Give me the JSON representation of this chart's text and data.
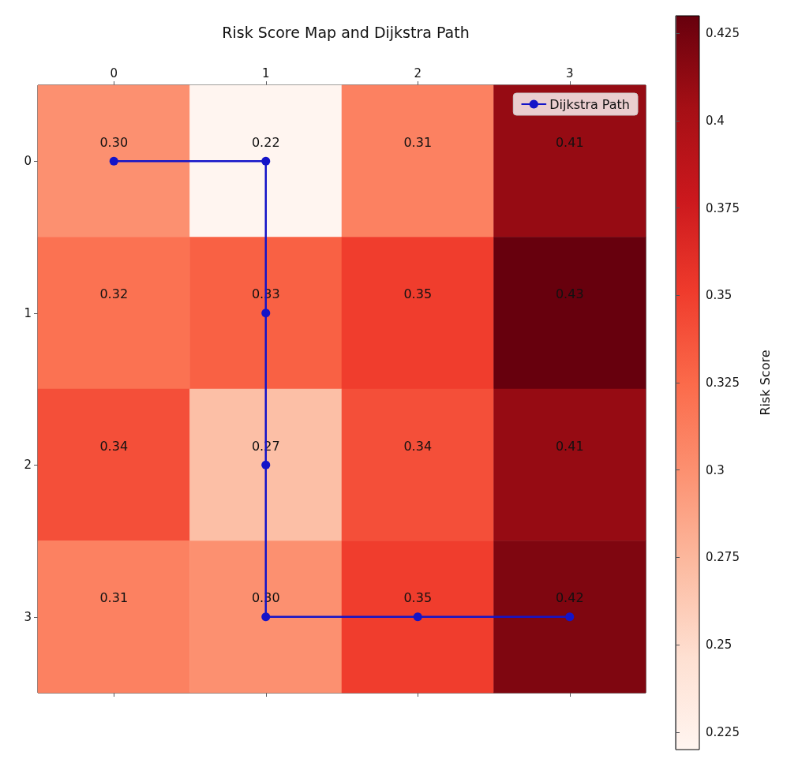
{
  "chart_data": {
    "type": "heatmap",
    "title": "Risk Score Map and Dijkstra Path",
    "clabel": "Risk Score",
    "categories": [
      "0",
      "1",
      "2",
      "3"
    ],
    "y_categories": [
      "0",
      "1",
      "2",
      "3"
    ],
    "cells": [
      [
        0.3,
        0.22,
        0.31,
        0.41
      ],
      [
        0.32,
        0.33,
        0.35,
        0.43
      ],
      [
        0.34,
        0.27,
        0.34,
        0.41
      ],
      [
        0.31,
        0.3,
        0.35,
        0.42
      ]
    ],
    "cell_labels": [
      [
        "0.30",
        "0.22",
        "0.31",
        "0.41"
      ],
      [
        "0.32",
        "0.33",
        "0.35",
        "0.43"
      ],
      [
        "0.34",
        "0.27",
        "0.34",
        "0.41"
      ],
      [
        "0.31",
        "0.30",
        "0.35",
        "0.42"
      ]
    ],
    "clim": [
      0.22,
      0.43
    ],
    "cticks": [
      0.225,
      0.25,
      0.275,
      0.3,
      0.325,
      0.35,
      0.375,
      0.4,
      0.425
    ],
    "series": [
      {
        "type": "line",
        "name": "Dijkstra Path",
        "color": "#1414c8",
        "x": [
          "0",
          "1",
          "1",
          "1",
          "1",
          "2",
          "3"
        ],
        "values": [
          0,
          0,
          1,
          2,
          3,
          3,
          3
        ]
      }
    ],
    "marker": "circle",
    "line_style": "solid",
    "legend": "top right",
    "grid": false
  }
}
